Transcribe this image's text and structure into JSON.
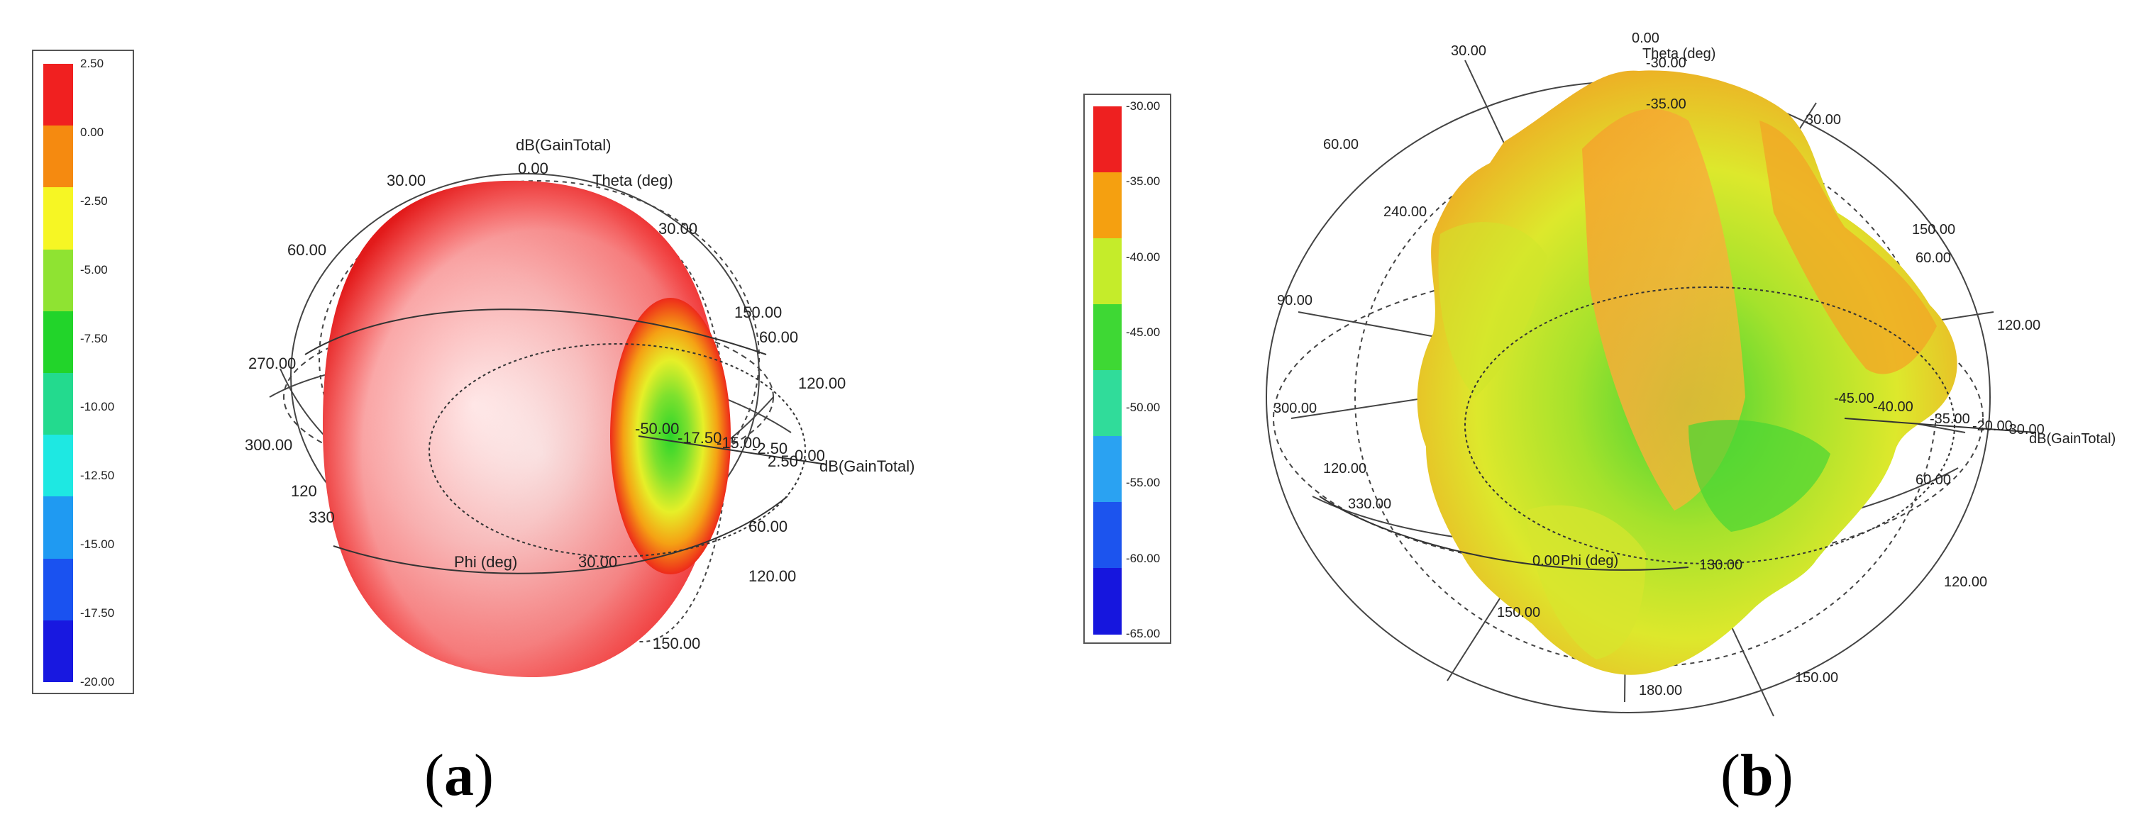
{
  "chart_data": [
    {
      "type": "other",
      "subtype": "3d-radiation-pattern",
      "panel_label": "a",
      "scale": {
        "ticks": [
          "2.50",
          "0.00",
          "-2.50",
          "-5.00",
          "-7.50",
          "-10.00",
          "-12.50",
          "-15.00",
          "-17.50",
          "-20.00"
        ],
        "colors": [
          "#f02020",
          "#f58a10",
          "#f6f624",
          "#8fe332",
          "#22d42a",
          "#23da8e",
          "#1ee8e2",
          "#1f9af2",
          "#1a52f0",
          "#1818e0"
        ]
      },
      "axis_labels": {
        "gain": "dB(GainTotal)",
        "theta": "Theta (deg)",
        "phi": "Phi (deg)"
      },
      "angle_labels": [
        "30.00",
        "60.00",
        "30.00",
        "150.00",
        "60.00",
        "120.00",
        "60.00",
        "120.00",
        "30.00",
        "150.00",
        "300.00",
        "270.00",
        "120",
        "330",
        "0.00"
      ],
      "radial_labels": [
        "-50.00",
        "-17.50",
        "-15.00",
        "-2.50",
        "2.50",
        "0.00"
      ]
    },
    {
      "type": "other",
      "subtype": "3d-radiation-pattern",
      "panel_label": "b",
      "scale": {
        "ticks": [
          "-30.00",
          "-35.00",
          "-40.00",
          "-45.00",
          "-50.00",
          "-55.00",
          "-60.00",
          "-65.00"
        ],
        "colors": [
          "#ee2020",
          "#f5a010",
          "#c5ec2a",
          "#3ed834",
          "#30dc9a",
          "#2aa2f2",
          "#1c54ee",
          "#1616de"
        ]
      },
      "axis_labels": {
        "gain": "dB(GainTotal)",
        "theta": "Theta (deg)",
        "phi": "Phi (deg)"
      },
      "angle_labels": [
        "0.00",
        "30.00",
        "30.00",
        "60.00",
        "240.00",
        "150.00",
        "60.00",
        "120.00",
        "90.00",
        "300.00",
        "120.00",
        "330.00",
        "60.00",
        "120.00",
        "150.00",
        "180.00",
        "150.00",
        "130.00",
        "0.00"
      ],
      "radial_labels": [
        "-30.00",
        "-35.00",
        "-45.00",
        "-40.00",
        "-35.00",
        "-20.00",
        "-30.00"
      ]
    }
  ]
}
